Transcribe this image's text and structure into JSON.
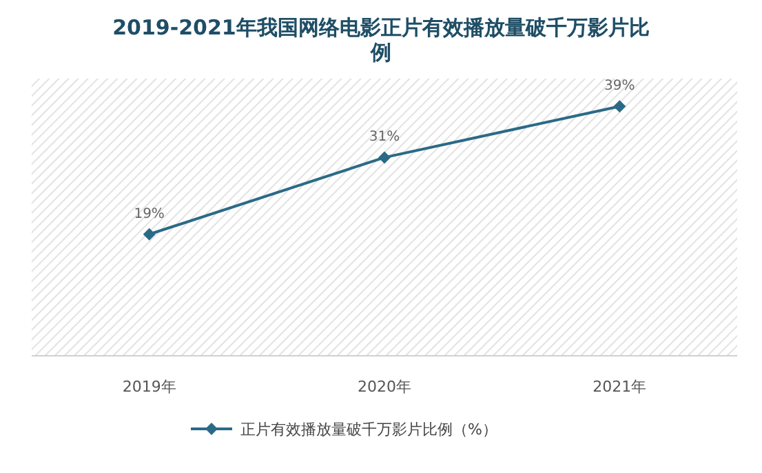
{
  "chart_data": {
    "type": "line",
    "title": "2019-2021年我国网络电影正片有效播放量破千万影片比例",
    "categories": [
      "2019年",
      "2020年",
      "2021年"
    ],
    "series": [
      {
        "name": "正片有效播放量破千万影片比例（%）",
        "color": "#2b6a87",
        "values": [
          19,
          31,
          39
        ],
        "value_labels": [
          "19%",
          "31%",
          "39%"
        ]
      }
    ],
    "marker": "diamond",
    "line_style": "solid",
    "legend": "bottom"
  }
}
